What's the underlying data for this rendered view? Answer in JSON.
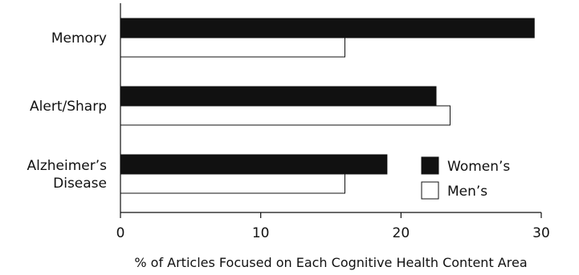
{
  "chart_data": {
    "type": "bar",
    "orientation": "horizontal",
    "categories": [
      [
        "Memory"
      ],
      [
        "Alert/Sharp"
      ],
      [
        "Alzheimer’s",
        "Disease"
      ]
    ],
    "series": [
      {
        "name": "Women’s",
        "color": "#111111",
        "values": [
          29.5,
          22.5,
          19
        ]
      },
      {
        "name": "Men’s",
        "color": "#ffffff",
        "values": [
          16,
          23.5,
          16
        ]
      }
    ],
    "xlabel": "% of Articles Focused on Each Cognitive Health Content Area",
    "xlim": [
      0,
      30
    ],
    "xticks": [
      "0",
      "10",
      "20",
      "30"
    ],
    "grid": false,
    "legend_position": "bottom-right"
  }
}
